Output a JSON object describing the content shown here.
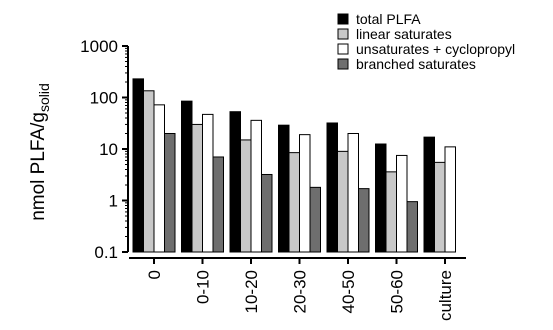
{
  "chart_data": {
    "type": "bar",
    "yscale": "log",
    "ylim": [
      0.1,
      1000
    ],
    "yticks": [
      {
        "value": 0.1,
        "label": "0.1"
      },
      {
        "value": 1,
        "label": "1"
      },
      {
        "value": 10,
        "label": "10"
      },
      {
        "value": 100,
        "label": "100"
      },
      {
        "value": 1000,
        "label": "1000"
      }
    ],
    "ylabel": {
      "main": "nmol PLFA/g",
      "sub": "solid"
    },
    "xlabel": "",
    "categories": [
      "0",
      "0-10",
      "10-20",
      "20-30",
      "40-50",
      "50-60",
      "culture"
    ],
    "series": [
      {
        "name": "total PLFA",
        "color": "#000000",
        "values": [
          230,
          85,
          53,
          29,
          32,
          12.5,
          17
        ]
      },
      {
        "name": "linear saturates",
        "color": "#c8c8c8",
        "values": [
          135,
          30,
          15,
          8.5,
          9,
          3.6,
          5.5
        ]
      },
      {
        "name": "unsaturates + cyclopropyl",
        "color": "#ffffff",
        "values": [
          72,
          47,
          36,
          19,
          20,
          7.5,
          11
        ]
      },
      {
        "name": "branched saturates",
        "color": "#6e6e6e",
        "values": [
          20,
          7,
          3.2,
          1.8,
          1.7,
          0.95,
          null
        ]
      }
    ],
    "legend_position": "top-right",
    "grid": false
  }
}
